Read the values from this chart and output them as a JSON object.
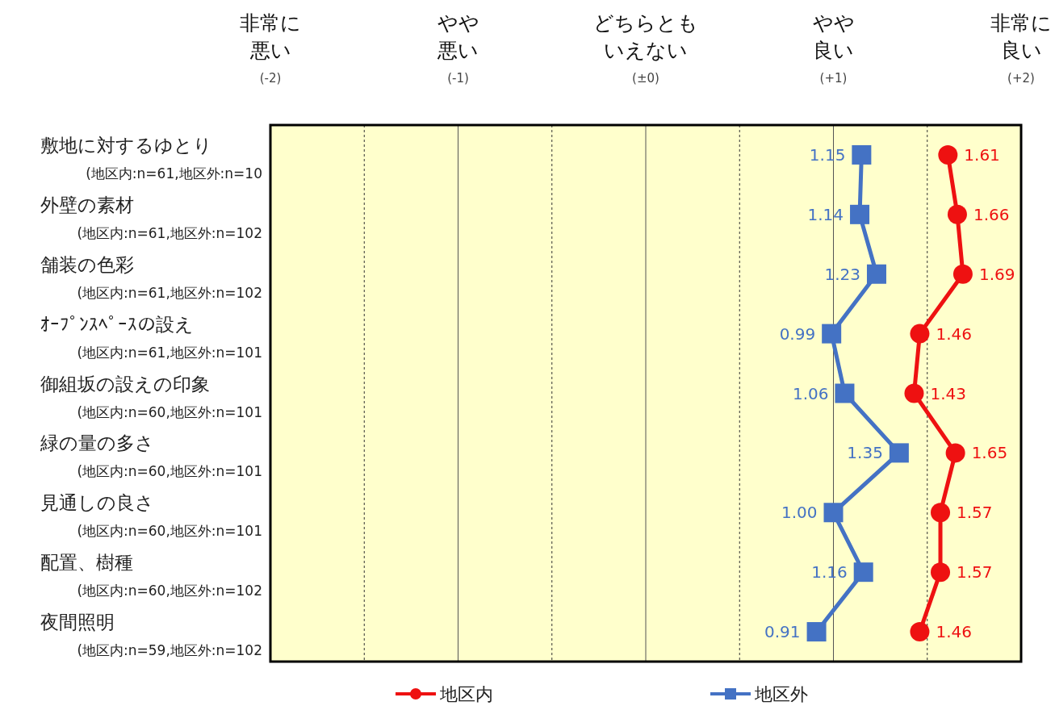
{
  "chart_data": {
    "type": "line",
    "categories": [
      "敷地に対するゆとり\n(地区内:n=61,地区外:n=10",
      "外壁の素材\n(地区内:n=61,地区外:n=102",
      "舗装の色彩\n(地区内:n=61,地区外:n=102",
      "ｵｰﾌﾟﾝｽﾍﾟｰｽの設え\n(地区内:n=61,地区外:n=101",
      "御組坂の設えの印象\n(地区内:n=60,地区外:n=101",
      "緑の量の多さ\n(地区内:n=60,地区外:n=101",
      "見通しの良さ\n(地区内:n=60,地区外:n=101",
      "配置、樹種\n(地区内:n=60,地区外:n=102",
      "夜間照明\n(地区内:n=59,地区外:n=102"
    ],
    "orientation": "horizontal",
    "series": [
      {
        "name": "地区内",
        "color": "#ee1111",
        "marker": "circle",
        "values": [
          1.61,
          1.66,
          1.69,
          1.46,
          1.43,
          1.65,
          1.57,
          1.57,
          1.46
        ]
      },
      {
        "name": "地区外",
        "color": "#4472c4",
        "marker": "square",
        "values": [
          1.15,
          1.14,
          1.23,
          0.99,
          1.06,
          1.35,
          1.0,
          1.16,
          0.91
        ],
        "value_labels": [
          "1.15",
          "1.14",
          "1.23",
          "0.99",
          "1.06",
          "1.35",
          "1.00",
          "1.16",
          "0.91"
        ]
      }
    ],
    "xlim": [
      -2,
      2
    ],
    "xticks": [
      {
        "value": -2,
        "label": "非常に悪い(-2)"
      },
      {
        "value": -1.5,
        "label": null
      },
      {
        "value": -1,
        "label": "やや悪い(-1)"
      },
      {
        "value": -0.5,
        "label": null
      },
      {
        "value": 0,
        "label": "どちらともいえない(±0)"
      },
      {
        "value": 0.5,
        "label": null
      },
      {
        "value": 1,
        "label": "やや良い(+1)"
      },
      {
        "value": 1.5,
        "label": null
      },
      {
        "value": 2,
        "label": "非常に良い(+2)"
      }
    ],
    "grid": "x",
    "data_labels": true,
    "legend": "bottom"
  }
}
